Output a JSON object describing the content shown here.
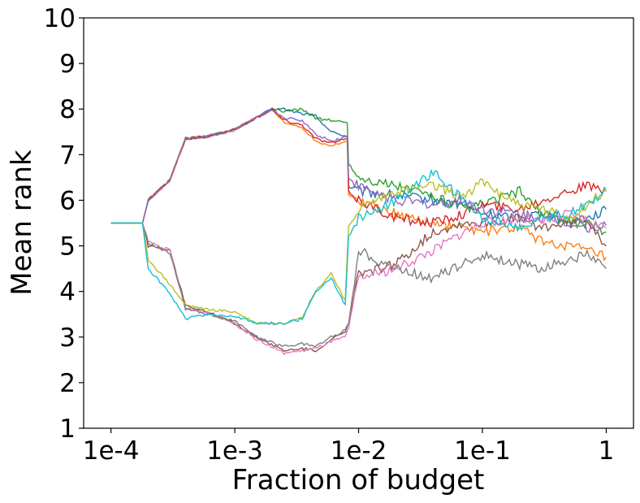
{
  "chart_data": {
    "type": "line",
    "title": "",
    "xlabel": "Fraction of budget",
    "ylabel": "Mean rank",
    "x_scale": "log",
    "xlim": [
      6.02e-05,
      1.66
    ],
    "ylim": [
      1,
      10
    ],
    "x_ticks": [
      {
        "value": 0.0001,
        "label": "1e-4"
      },
      {
        "value": 0.001,
        "label": "1e-3"
      },
      {
        "value": 0.01,
        "label": "1e-2"
      },
      {
        "value": 0.1,
        "label": "1e-1"
      },
      {
        "value": 1,
        "label": "1"
      }
    ],
    "y_ticks": [
      {
        "value": 1,
        "label": "1"
      },
      {
        "value": 2,
        "label": "2"
      },
      {
        "value": 3,
        "label": "3"
      },
      {
        "value": 4,
        "label": "4"
      },
      {
        "value": 5,
        "label": "5"
      },
      {
        "value": 6,
        "label": "6"
      },
      {
        "value": 7,
        "label": "7"
      },
      {
        "value": 8,
        "label": "8"
      },
      {
        "value": 9,
        "label": "9"
      },
      {
        "value": 10,
        "label": "10"
      }
    ],
    "grid": false,
    "legend": "none",
    "series": [
      {
        "color": "#1f77b4",
        "x": [
          0.0001,
          0.00018,
          0.0002,
          0.0003,
          0.0004,
          0.0006,
          0.001,
          0.002,
          0.0025,
          0.0035,
          0.0045,
          0.006,
          0.0081,
          0.0083,
          0.01,
          0.02,
          0.04,
          0.07,
          0.1,
          0.2,
          0.3,
          0.5,
          0.7,
          1
        ],
        "y": [
          5.5,
          5.5,
          6.0,
          6.45,
          7.35,
          7.4,
          7.55,
          8.0,
          8.0,
          7.9,
          7.85,
          7.5,
          7.4,
          6.3,
          6.2,
          6.1,
          6.0,
          5.9,
          5.7,
          5.6,
          5.75,
          5.55,
          5.6,
          5.8
        ]
      },
      {
        "color": "#ff7f0e",
        "x": [
          0.0001,
          0.00018,
          0.0002,
          0.0003,
          0.0004,
          0.0006,
          0.001,
          0.002,
          0.0025,
          0.0035,
          0.0045,
          0.006,
          0.0081,
          0.0083,
          0.01,
          0.02,
          0.04,
          0.07,
          0.1,
          0.2,
          0.3,
          0.5,
          0.7,
          1
        ],
        "y": [
          5.5,
          5.5,
          6.0,
          6.45,
          7.35,
          7.4,
          7.55,
          8.0,
          7.7,
          7.6,
          7.3,
          7.2,
          7.3,
          6.1,
          6.0,
          5.7,
          5.5,
          5.4,
          5.3,
          5.4,
          5.1,
          5.0,
          4.9,
          4.75
        ]
      },
      {
        "color": "#2ca02c",
        "x": [
          0.0001,
          0.00018,
          0.0002,
          0.0003,
          0.0004,
          0.0006,
          0.001,
          0.002,
          0.0025,
          0.0035,
          0.0045,
          0.006,
          0.0081,
          0.0083,
          0.01,
          0.02,
          0.04,
          0.07,
          0.1,
          0.2,
          0.3,
          0.5,
          0.7,
          1
        ],
        "y": [
          5.5,
          5.5,
          6.0,
          6.45,
          7.35,
          7.4,
          7.55,
          8.0,
          7.95,
          8.0,
          7.8,
          7.75,
          7.7,
          6.8,
          6.5,
          6.3,
          6.1,
          5.8,
          5.9,
          6.2,
          5.7,
          5.5,
          5.5,
          5.3
        ]
      },
      {
        "color": "#d62728",
        "x": [
          0.0001,
          0.00018,
          0.0002,
          0.0003,
          0.0004,
          0.0006,
          0.001,
          0.002,
          0.0025,
          0.0035,
          0.0045,
          0.006,
          0.0081,
          0.0083,
          0.01,
          0.02,
          0.04,
          0.07,
          0.1,
          0.2,
          0.3,
          0.5,
          0.7,
          1
        ],
        "y": [
          5.5,
          5.5,
          6.0,
          6.45,
          7.35,
          7.4,
          7.55,
          8.0,
          7.75,
          7.65,
          7.35,
          7.25,
          7.35,
          6.2,
          6.0,
          5.6,
          5.5,
          5.7,
          5.9,
          5.8,
          6.0,
          6.2,
          6.3,
          6.2
        ]
      },
      {
        "color": "#9467bd",
        "x": [
          0.0001,
          0.00018,
          0.0002,
          0.0003,
          0.0004,
          0.0006,
          0.001,
          0.002,
          0.0025,
          0.0035,
          0.0045,
          0.006,
          0.0081,
          0.0083,
          0.01,
          0.02,
          0.04,
          0.07,
          0.1,
          0.2,
          0.3,
          0.5,
          0.7,
          1
        ],
        "y": [
          5.5,
          5.5,
          6.0,
          6.45,
          7.35,
          7.4,
          7.55,
          8.0,
          7.8,
          7.75,
          7.45,
          7.3,
          7.4,
          6.5,
          6.3,
          6.0,
          5.9,
          6.0,
          5.8,
          5.7,
          5.6,
          5.5,
          5.4,
          5.45
        ]
      },
      {
        "color": "#8c564b",
        "x": [
          0.0001,
          0.00018,
          0.0002,
          0.0003,
          0.0004,
          0.0006,
          0.001,
          0.0015,
          0.0025,
          0.0035,
          0.0045,
          0.006,
          0.0078,
          0.0083,
          0.01,
          0.02,
          0.04,
          0.07,
          0.1,
          0.2,
          0.3,
          0.5,
          0.7,
          1
        ],
        "y": [
          5.5,
          5.5,
          5.0,
          4.9,
          3.7,
          3.55,
          3.3,
          3.0,
          2.7,
          2.75,
          2.7,
          2.95,
          3.1,
          3.3,
          4.4,
          4.6,
          5.3,
          5.5,
          5.5,
          5.6,
          5.4,
          5.5,
          5.6,
          5.0
        ]
      },
      {
        "color": "#e377c2",
        "x": [
          0.0001,
          0.00018,
          0.0002,
          0.0003,
          0.0004,
          0.0006,
          0.001,
          0.0015,
          0.0025,
          0.0035,
          0.0045,
          0.006,
          0.0078,
          0.0083,
          0.01,
          0.02,
          0.04,
          0.07,
          0.1,
          0.2,
          0.3,
          0.5,
          0.7,
          1
        ],
        "y": [
          5.5,
          5.5,
          5.1,
          4.9,
          3.6,
          3.55,
          3.3,
          2.95,
          2.65,
          2.7,
          2.75,
          2.9,
          3.0,
          3.2,
          4.3,
          4.5,
          4.9,
          5.3,
          5.5,
          5.6,
          5.5,
          5.7,
          5.55,
          5.4
        ]
      },
      {
        "color": "#7f7f7f",
        "x": [
          0.0001,
          0.00018,
          0.0002,
          0.0003,
          0.0004,
          0.0006,
          0.001,
          0.0015,
          0.0025,
          0.0035,
          0.0045,
          0.006,
          0.0078,
          0.0083,
          0.01,
          0.02,
          0.04,
          0.07,
          0.1,
          0.2,
          0.3,
          0.5,
          0.7,
          1
        ],
        "y": [
          5.5,
          5.5,
          5.05,
          4.85,
          3.65,
          3.5,
          3.35,
          3.0,
          2.8,
          2.85,
          2.8,
          3.0,
          3.15,
          3.3,
          4.9,
          4.5,
          4.3,
          4.6,
          4.8,
          4.6,
          4.5,
          4.7,
          4.8,
          4.5
        ]
      },
      {
        "color": "#bcbd22",
        "x": [
          0.0001,
          0.00018,
          0.0002,
          0.0003,
          0.0004,
          0.0006,
          0.001,
          0.0015,
          0.0025,
          0.0035,
          0.0045,
          0.006,
          0.0078,
          0.0083,
          0.01,
          0.02,
          0.04,
          0.07,
          0.1,
          0.2,
          0.3,
          0.5,
          0.7,
          1
        ],
        "y": [
          5.5,
          5.5,
          4.7,
          4.15,
          3.7,
          3.6,
          3.55,
          3.3,
          3.3,
          3.45,
          4.0,
          4.4,
          3.8,
          5.4,
          5.8,
          6.2,
          6.3,
          6.1,
          6.4,
          5.9,
          5.8,
          5.6,
          5.9,
          6.2
        ]
      },
      {
        "color": "#17becf",
        "x": [
          0.0001,
          0.00018,
          0.0002,
          0.0003,
          0.0004,
          0.0006,
          0.001,
          0.0015,
          0.0025,
          0.0035,
          0.0045,
          0.006,
          0.0078,
          0.0083,
          0.01,
          0.02,
          0.04,
          0.07,
          0.1,
          0.2,
          0.3,
          0.5,
          0.7,
          1
        ],
        "y": [
          5.5,
          5.5,
          4.5,
          3.95,
          3.4,
          3.5,
          3.45,
          3.3,
          3.3,
          3.4,
          4.0,
          4.3,
          3.7,
          5.2,
          5.6,
          6.0,
          6.6,
          6.0,
          5.6,
          5.4,
          5.6,
          5.7,
          5.9,
          6.25
        ]
      }
    ]
  }
}
